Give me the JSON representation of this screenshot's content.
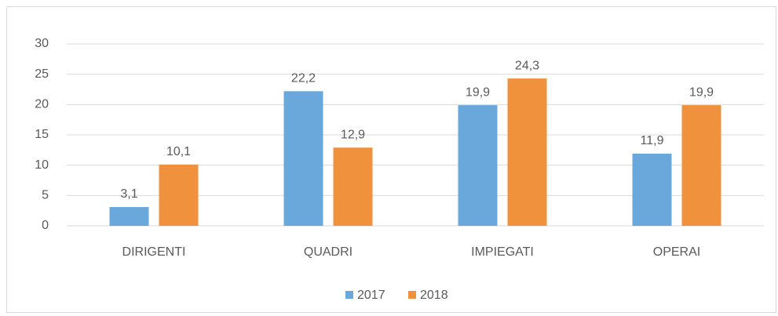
{
  "chart_data": {
    "type": "bar",
    "categories": [
      "DIRIGENTI",
      "QUADRI",
      "IMPIEGATI",
      "OPERAI"
    ],
    "series": [
      {
        "name": "2017",
        "color": "#6aa8dc",
        "values": [
          3.1,
          22.2,
          19.9,
          11.9
        ],
        "value_labels": [
          "3,1",
          "22,2",
          "19,9",
          "11,9"
        ]
      },
      {
        "name": "2018",
        "color": "#f0913e",
        "values": [
          10.1,
          12.9,
          24.3,
          19.9
        ],
        "value_labels": [
          "10,1",
          "12,9",
          "24,3",
          "19,9"
        ]
      }
    ],
    "ylim": [
      0,
      30
    ],
    "yticks": [
      0,
      5,
      10,
      15,
      20,
      25,
      30
    ],
    "grid": true,
    "legend": "bottom"
  }
}
